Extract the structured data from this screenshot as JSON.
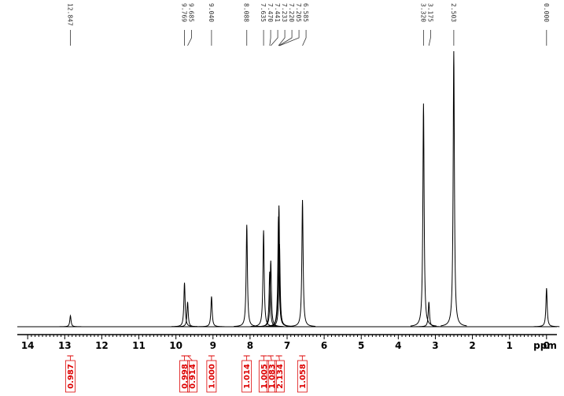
{
  "chart_data": {
    "type": "spectrum",
    "x_label": "ppm",
    "xlim": [
      14.28,
      -0.28
    ],
    "xticks": [
      14,
      13,
      12,
      11,
      10,
      9,
      8,
      7,
      6,
      5,
      4,
      3,
      2,
      1,
      0
    ],
    "color": "#000000",
    "integral_color": "#dd0000",
    "peaks": {
      "x": [
        12.847,
        9.769,
        9.685,
        {
          "value": 9.04,
          "label": "9.040"
        },
        8.088,
        7.635,
        {
          "value": 7.47,
          "label": "7.470"
        },
        7.441,
        7.233,
        {
          "value": 7.22,
          "label": "7.220"
        },
        7.205,
        6.585,
        {
          "value": 3.32,
          "label": "3.320"
        },
        3.175,
        2.503,
        {
          "value": 0,
          "label": "0.000"
        }
      ],
      "values": [
        4,
        16,
        9,
        11,
        37,
        35,
        20,
        24,
        40,
        44,
        30,
        46,
        81,
        9,
        100,
        14
      ]
    },
    "integrals": {
      "x": [
        12.85,
        9.77,
        9.68,
        9.04,
        8.09,
        7.63,
        7.45,
        7.22,
        6.59
      ],
      "values": [
        0.987,
        0.998,
        0.914,
        {
          "value": 1,
          "label": "1.000"
        },
        1.014,
        1.005,
        1.083,
        2.134,
        1.058
      ]
    }
  }
}
